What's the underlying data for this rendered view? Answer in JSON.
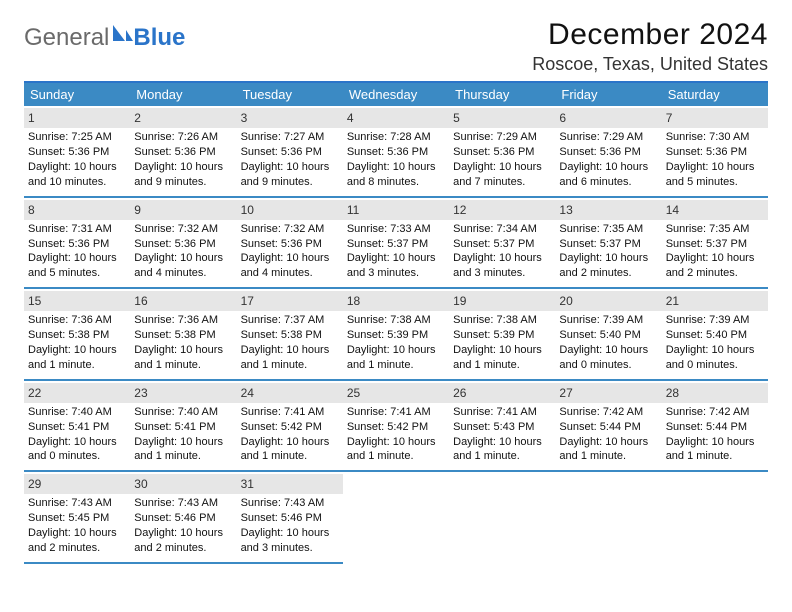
{
  "brand": {
    "part1": "General",
    "part2": "Blue"
  },
  "title": "December 2024",
  "location": "Roscoe, Texas, United States",
  "colors": {
    "header_bg": "#3b8ac4",
    "header_border": "#2a74c9",
    "row_divider": "#3b8ac4",
    "daynum_bg": "#e6e6e6",
    "text": "#111111",
    "logo_gray": "#6a6a6a",
    "logo_blue": "#2a74c9"
  },
  "day_headers": [
    "Sunday",
    "Monday",
    "Tuesday",
    "Wednesday",
    "Thursday",
    "Friday",
    "Saturday"
  ],
  "weeks": [
    [
      {
        "n": "1",
        "sr": "7:25 AM",
        "ss": "5:36 PM",
        "dl": "10 hours and 10 minutes."
      },
      {
        "n": "2",
        "sr": "7:26 AM",
        "ss": "5:36 PM",
        "dl": "10 hours and 9 minutes."
      },
      {
        "n": "3",
        "sr": "7:27 AM",
        "ss": "5:36 PM",
        "dl": "10 hours and 9 minutes."
      },
      {
        "n": "4",
        "sr": "7:28 AM",
        "ss": "5:36 PM",
        "dl": "10 hours and 8 minutes."
      },
      {
        "n": "5",
        "sr": "7:29 AM",
        "ss": "5:36 PM",
        "dl": "10 hours and 7 minutes."
      },
      {
        "n": "6",
        "sr": "7:29 AM",
        "ss": "5:36 PM",
        "dl": "10 hours and 6 minutes."
      },
      {
        "n": "7",
        "sr": "7:30 AM",
        "ss": "5:36 PM",
        "dl": "10 hours and 5 minutes."
      }
    ],
    [
      {
        "n": "8",
        "sr": "7:31 AM",
        "ss": "5:36 PM",
        "dl": "10 hours and 5 minutes."
      },
      {
        "n": "9",
        "sr": "7:32 AM",
        "ss": "5:36 PM",
        "dl": "10 hours and 4 minutes."
      },
      {
        "n": "10",
        "sr": "7:32 AM",
        "ss": "5:36 PM",
        "dl": "10 hours and 4 minutes."
      },
      {
        "n": "11",
        "sr": "7:33 AM",
        "ss": "5:37 PM",
        "dl": "10 hours and 3 minutes."
      },
      {
        "n": "12",
        "sr": "7:34 AM",
        "ss": "5:37 PM",
        "dl": "10 hours and 3 minutes."
      },
      {
        "n": "13",
        "sr": "7:35 AM",
        "ss": "5:37 PM",
        "dl": "10 hours and 2 minutes."
      },
      {
        "n": "14",
        "sr": "7:35 AM",
        "ss": "5:37 PM",
        "dl": "10 hours and 2 minutes."
      }
    ],
    [
      {
        "n": "15",
        "sr": "7:36 AM",
        "ss": "5:38 PM",
        "dl": "10 hours and 1 minute."
      },
      {
        "n": "16",
        "sr": "7:36 AM",
        "ss": "5:38 PM",
        "dl": "10 hours and 1 minute."
      },
      {
        "n": "17",
        "sr": "7:37 AM",
        "ss": "5:38 PM",
        "dl": "10 hours and 1 minute."
      },
      {
        "n": "18",
        "sr": "7:38 AM",
        "ss": "5:39 PM",
        "dl": "10 hours and 1 minute."
      },
      {
        "n": "19",
        "sr": "7:38 AM",
        "ss": "5:39 PM",
        "dl": "10 hours and 1 minute."
      },
      {
        "n": "20",
        "sr": "7:39 AM",
        "ss": "5:40 PM",
        "dl": "10 hours and 0 minutes."
      },
      {
        "n": "21",
        "sr": "7:39 AM",
        "ss": "5:40 PM",
        "dl": "10 hours and 0 minutes."
      }
    ],
    [
      {
        "n": "22",
        "sr": "7:40 AM",
        "ss": "5:41 PM",
        "dl": "10 hours and 0 minutes."
      },
      {
        "n": "23",
        "sr": "7:40 AM",
        "ss": "5:41 PM",
        "dl": "10 hours and 1 minute."
      },
      {
        "n": "24",
        "sr": "7:41 AM",
        "ss": "5:42 PM",
        "dl": "10 hours and 1 minute."
      },
      {
        "n": "25",
        "sr": "7:41 AM",
        "ss": "5:42 PM",
        "dl": "10 hours and 1 minute."
      },
      {
        "n": "26",
        "sr": "7:41 AM",
        "ss": "5:43 PM",
        "dl": "10 hours and 1 minute."
      },
      {
        "n": "27",
        "sr": "7:42 AM",
        "ss": "5:44 PM",
        "dl": "10 hours and 1 minute."
      },
      {
        "n": "28",
        "sr": "7:42 AM",
        "ss": "5:44 PM",
        "dl": "10 hours and 1 minute."
      }
    ],
    [
      {
        "n": "29",
        "sr": "7:43 AM",
        "ss": "5:45 PM",
        "dl": "10 hours and 2 minutes."
      },
      {
        "n": "30",
        "sr": "7:43 AM",
        "ss": "5:46 PM",
        "dl": "10 hours and 2 minutes."
      },
      {
        "n": "31",
        "sr": "7:43 AM",
        "ss": "5:46 PM",
        "dl": "10 hours and 3 minutes."
      },
      null,
      null,
      null,
      null
    ]
  ]
}
